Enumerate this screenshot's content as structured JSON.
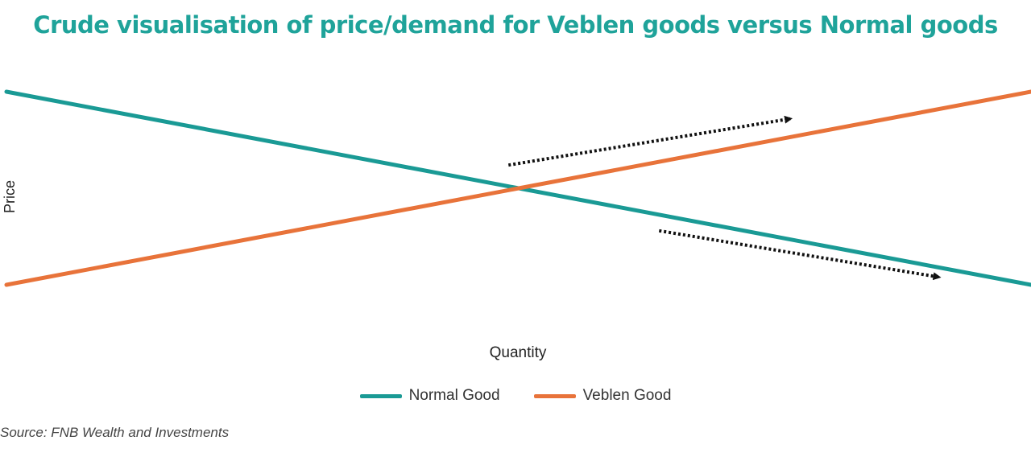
{
  "colors": {
    "title": "#1fa39a",
    "normal": "#1a9a95",
    "veblen": "#e8733a",
    "arrow": "#111111"
  },
  "chart_data": {
    "type": "line",
    "title": "Crude visualisation of price/demand for Veblen goods versus Normal goods",
    "xlabel": "Quantity",
    "ylabel": "Price",
    "x": [
      0,
      1
    ],
    "xlim": [
      0,
      1
    ],
    "ylim": [
      0,
      1
    ],
    "grid": false,
    "ticks": "none",
    "legend": "bottom-center",
    "series": [
      {
        "name": "Normal Good",
        "color_key": "normal",
        "values": [
          0.75,
          0.25
        ]
      },
      {
        "name": "Veblen Good",
        "color_key": "veblen",
        "values": [
          0.25,
          0.75
        ]
      }
    ],
    "annotations": [
      {
        "type": "dotted-arrow",
        "from": [
          0.49,
          0.56
        ],
        "to": [
          0.765,
          0.68
        ]
      },
      {
        "type": "dotted-arrow",
        "from": [
          0.637,
          0.39
        ],
        "to": [
          0.91,
          0.27
        ]
      }
    ],
    "source": "Source: FNB Wealth and Investments"
  }
}
